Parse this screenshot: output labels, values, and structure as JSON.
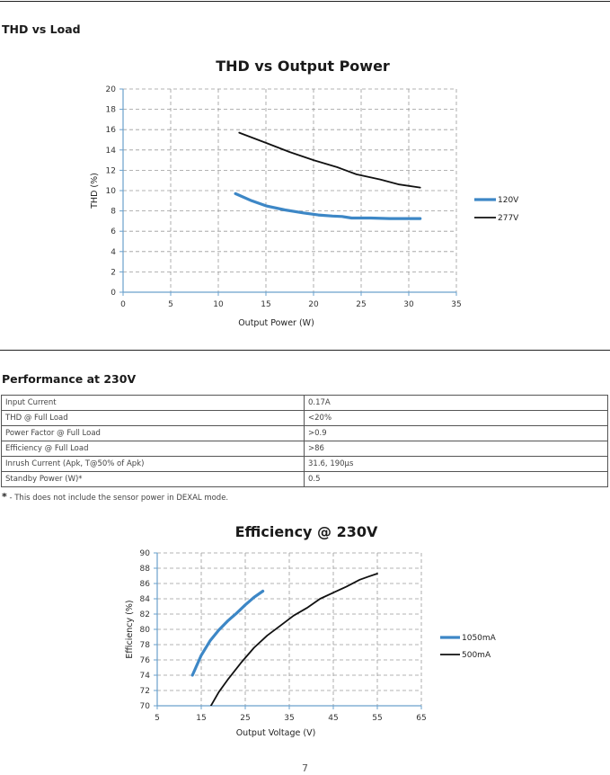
{
  "sections": {
    "thd_heading": "THD vs Load",
    "performance_heading": "Performance at 230V"
  },
  "performance_table": [
    {
      "param": "Input Current",
      "value": "0.17A"
    },
    {
      "param": "THD @ Full Load",
      "value": "<20%"
    },
    {
      "param": "Power Factor @ Full Load",
      "value": ">0.9"
    },
    {
      "param": "Efficiency @ Full Load",
      "value": ">86"
    },
    {
      "param": "Inrush Current (Apk, T@50% of Apk)",
      "value": "31.6, 190µs"
    },
    {
      "param": "Standby Power (W)*",
      "value": "0.5"
    }
  ],
  "footnote": {
    "symbol": "*",
    "text": " - This does not include the sensor power in DEXAL mode."
  },
  "page_number": "7",
  "chart_data": [
    {
      "type": "line",
      "title": "THD vs Output Power",
      "xlabel": "Output Power (W)",
      "ylabel": "THD (%)",
      "xlim": [
        0,
        35
      ],
      "ylim": [
        0,
        20
      ],
      "xticks": [
        "0",
        "5",
        "10",
        "15",
        "20",
        "25",
        "30",
        "35"
      ],
      "yticks": [
        "0",
        "2",
        "4",
        "6",
        "8",
        "10",
        "12",
        "14",
        "16",
        "18",
        "20"
      ],
      "grid": true,
      "legend_position": "right",
      "series": [
        {
          "name": "120V",
          "color": "#3d87c6",
          "x": [
            11.8,
            13.5,
            15,
            17,
            19,
            20.5,
            22,
            23,
            24,
            26,
            28,
            30,
            31.2
          ],
          "y": [
            9.7,
            9.0,
            8.5,
            8.1,
            7.8,
            7.6,
            7.5,
            7.45,
            7.3,
            7.3,
            7.25,
            7.25,
            7.25
          ]
        },
        {
          "name": "277V",
          "color": "#111111",
          "x": [
            12.2,
            15,
            17.5,
            20,
            22.5,
            24.5,
            27,
            29,
            31.2
          ],
          "y": [
            15.7,
            14.7,
            13.8,
            13.0,
            12.3,
            11.6,
            11.1,
            10.6,
            10.3
          ]
        }
      ]
    },
    {
      "type": "line",
      "title": "Efficiency @ 230V",
      "xlabel": "Output Voltage (V)",
      "ylabel": "Efficiency (%)",
      "xlim": [
        5,
        65
      ],
      "ylim": [
        70,
        90
      ],
      "xticks": [
        "5",
        "15",
        "25",
        "35",
        "45",
        "55",
        "65"
      ],
      "yticks": [
        "70",
        "72",
        "74",
        "76",
        "78",
        "80",
        "82",
        "84",
        "86",
        "88",
        "90"
      ],
      "grid": true,
      "legend_position": "right",
      "series": [
        {
          "name": "1050mA",
          "color": "#3d87c6",
          "x": [
            13,
            15,
            17,
            19,
            21,
            23,
            25,
            27,
            29
          ],
          "y": [
            74,
            76.6,
            78.5,
            79.9,
            81.1,
            82.1,
            83.2,
            84.2,
            85
          ]
        },
        {
          "name": "500mA",
          "color": "#111111",
          "x": [
            17,
            19,
            21,
            24,
            27,
            30,
            33,
            36,
            39,
            42,
            45,
            48,
            51,
            53,
            55
          ],
          "y": [
            69.8,
            71.8,
            73.4,
            75.6,
            77.6,
            79.2,
            80.5,
            81.8,
            82.8,
            84,
            84.8,
            85.6,
            86.5,
            86.9,
            87.3
          ]
        }
      ]
    }
  ]
}
